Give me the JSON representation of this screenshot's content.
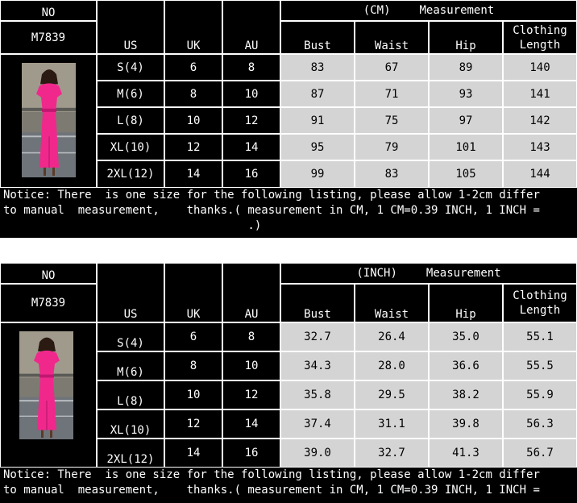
{
  "tables": [
    {
      "no_label": "NO",
      "model": "M7839",
      "unit": "(CM)",
      "measurement": "Measurement",
      "cols": {
        "us": "US",
        "uk": "UK",
        "au": "AU",
        "bust": "Bust",
        "waist": "Waist",
        "hip": "Hip",
        "length1": "Clothing",
        "length2": "Length"
      },
      "rows": [
        {
          "us": "S(4)",
          "uk": "6",
          "au": "8",
          "bust": "83",
          "waist": "67",
          "hip": "89",
          "length": "140"
        },
        {
          "us": "M(6)",
          "uk": "8",
          "au": "10",
          "bust": "87",
          "waist": "71",
          "hip": "93",
          "length": "141"
        },
        {
          "us": "L(8)",
          "uk": "10",
          "au": "12",
          "bust": "91",
          "waist": "75",
          "hip": "97",
          "length": "142"
        },
        {
          "us": "XL(10)",
          "uk": "12",
          "au": "14",
          "bust": "95",
          "waist": "79",
          "hip": "101",
          "length": "143"
        },
        {
          "us": "2XL(12)",
          "uk": "14",
          "au": "16",
          "bust": "99",
          "waist": "83",
          "hip": "105",
          "length": "144"
        }
      ],
      "notice": [
        "Notice: There  is one size for the following listing, please allow 1-2cm differ",
        "to manual  measurement,    thanks.( measurement in CM, 1 CM=0.39 INCH, 1 INCH =",
        "                                    .)"
      ]
    },
    {
      "no_label": "NO",
      "model": "M7839",
      "unit": "(INCH)",
      "measurement": "Measurement",
      "cols": {
        "us": "US",
        "uk": "UK",
        "au": "AU",
        "bust": "Bust",
        "waist": "Waist",
        "hip": "Hip",
        "length1": "Clothing",
        "length2": "Length"
      },
      "rows": [
        {
          "us": "S(4)",
          "uk": "6",
          "au": "8",
          "bust": "32.7",
          "waist": "26.4",
          "hip": "35.0",
          "length": "55.1"
        },
        {
          "us": "M(6)",
          "uk": "8",
          "au": "10",
          "bust": "34.3",
          "waist": "28.0",
          "hip": "36.6",
          "length": "55.5"
        },
        {
          "us": "L(8)",
          "uk": "10",
          "au": "12",
          "bust": "35.8",
          "waist": "29.5",
          "hip": "38.2",
          "length": "55.9"
        },
        {
          "us": "XL(10)",
          "uk": "12",
          "au": "14",
          "bust": "37.4",
          "waist": "31.1",
          "hip": "39.8",
          "length": "56.3"
        },
        {
          "us": "2XL(12)",
          "uk": "14",
          "au": "16",
          "bust": "39.0",
          "waist": "32.7",
          "hip": "41.3",
          "length": "56.7"
        }
      ],
      "notice": [
        "Notice: There  is one size for the following listing, please allow 1-2cm differ",
        "to manual  measurement,    thanks.( measurement in CM, 1 CM=0.39 INCH, 1 INCH ="
      ]
    }
  ],
  "colors": {
    "dress": "#f0288c",
    "background": "#000000",
    "cell_gray": "#d4d4d4"
  }
}
